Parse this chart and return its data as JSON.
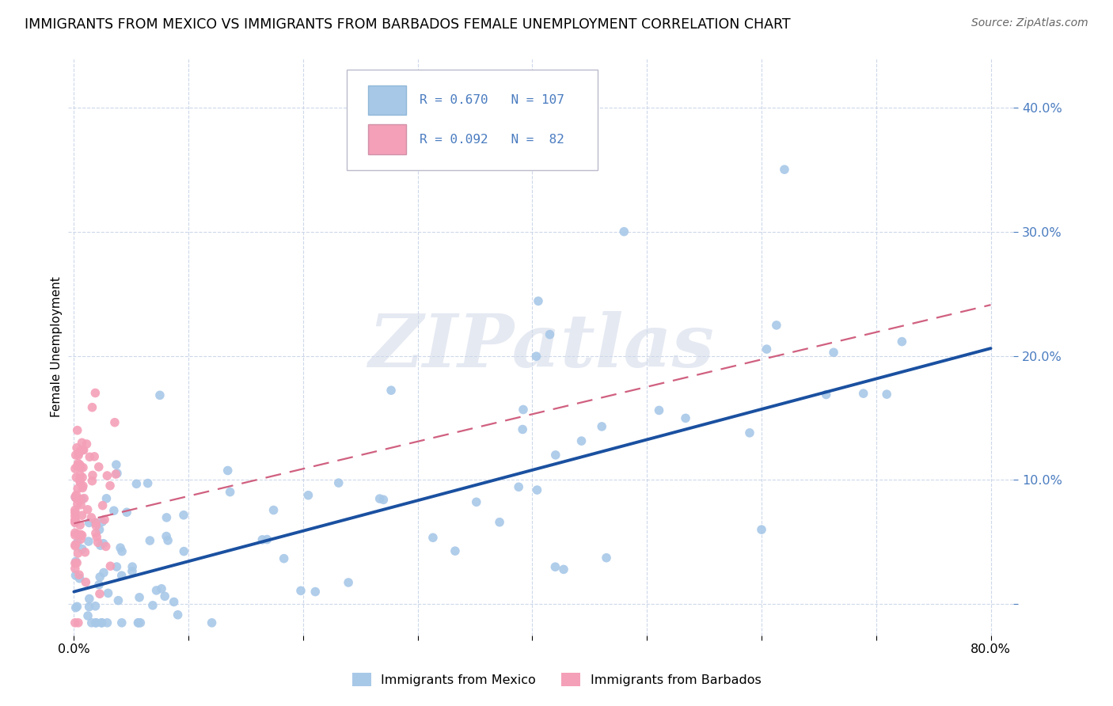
{
  "title": "IMMIGRANTS FROM MEXICO VS IMMIGRANTS FROM BARBADOS FEMALE UNEMPLOYMENT CORRELATION CHART",
  "source": "Source: ZipAtlas.com",
  "ylabel": "Female Unemployment",
  "y_ticks": [
    0.0,
    0.1,
    0.2,
    0.3,
    0.4
  ],
  "y_tick_labels": [
    "",
    "10.0%",
    "20.0%",
    "30.0%",
    "40.0%"
  ],
  "xlim": [
    -0.005,
    0.82
  ],
  "ylim": [
    -0.025,
    0.44
  ],
  "mexico_R": 0.67,
  "mexico_N": 107,
  "barbados_R": 0.092,
  "barbados_N": 82,
  "mexico_color": "#a8c8e8",
  "mexico_line_color": "#1a50a0",
  "barbados_color": "#f4a0b8",
  "barbados_line_color": "#d06080",
  "legend_label_mexico": "Immigrants from Mexico",
  "legend_label_barbados": "Immigrants from Barbados",
  "background_color": "#ffffff",
  "grid_color": "#c8d4e8",
  "watermark": "ZIPatlas",
  "title_fontsize": 12.5,
  "source_fontsize": 10,
  "tick_color": "#4a7cc0"
}
